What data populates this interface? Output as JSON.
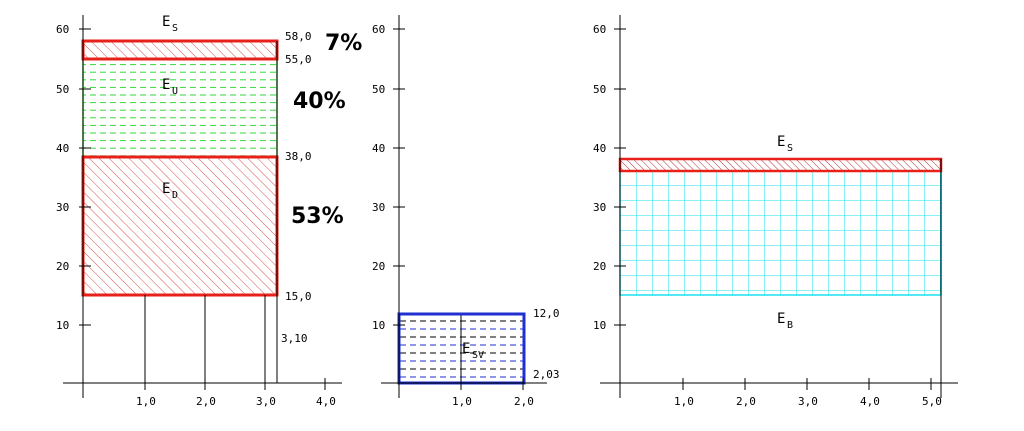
{
  "colors": {
    "red": "#e8201a",
    "green": "#36d83a",
    "blue": "#1f2fd0",
    "cyan": "#18e0f0",
    "hatch_red": "#d85050",
    "axis": "#000000"
  },
  "diagram1": {
    "y_ticks": [
      "10",
      "20",
      "30",
      "40",
      "50",
      "60"
    ],
    "x_ticks": [
      "1,0",
      "2,0",
      "3,0",
      "4,0"
    ],
    "labels": {
      "es_main": "E",
      "es_sub": "S",
      "eu_main": "E",
      "eu_sub": "U",
      "ed_main": "E",
      "ed_sub": "D"
    },
    "values": {
      "v58": "58,0",
      "v55": "55,0",
      "v38": "38,0",
      "v15": "15,0",
      "v310": "3,10"
    },
    "percents": {
      "p7": "7%",
      "p40": "40%",
      "p53": "53%"
    }
  },
  "diagram2": {
    "y_ticks": [
      "10",
      "20",
      "30",
      "40",
      "50",
      "60"
    ],
    "x_ticks": [
      "1,0",
      "2,0"
    ],
    "labels": {
      "esv_main": "E",
      "esv_sub": "SV"
    },
    "values": {
      "v12": "12,0",
      "v203": "2,03"
    }
  },
  "diagram3": {
    "y_ticks": [
      "10",
      "20",
      "30",
      "40",
      "50",
      "60"
    ],
    "x_ticks": [
      "1,0",
      "2,0",
      "3,0",
      "4,0",
      "5,0"
    ],
    "labels": {
      "es_main": "E",
      "es_sub": "S",
      "eb_main": "E",
      "eb_sub": "B"
    }
  }
}
